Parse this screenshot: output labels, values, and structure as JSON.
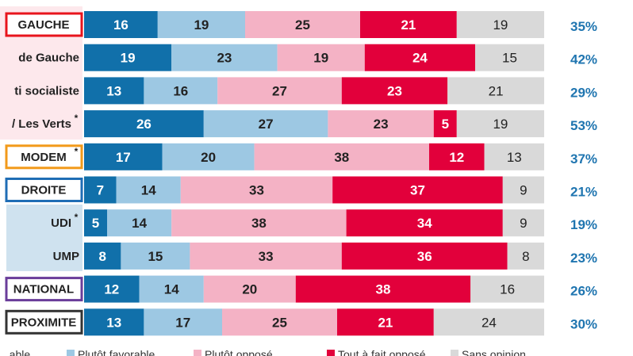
{
  "chart_data": {
    "type": "bar",
    "orientation": "horizontal",
    "stacked": true,
    "categories": [
      "GAUCHE",
      "de Gauche",
      "ti socialiste",
      "/ Les Verts",
      "MODEM",
      "DROITE",
      "UDI",
      "UMP",
      "NATIONAL",
      "PROXIMITE"
    ],
    "category_asterisk": [
      false,
      false,
      false,
      true,
      true,
      false,
      true,
      false,
      false,
      false
    ],
    "category_box": [
      {
        "style": "outlined",
        "color": "#e8141c"
      },
      {
        "style": "plain"
      },
      {
        "style": "plain"
      },
      {
        "style": "plain"
      },
      {
        "style": "outlined",
        "color": "#f29a1a"
      },
      {
        "style": "outlined",
        "color": "#1f6db5"
      },
      {
        "style": "shaded"
      },
      {
        "style": "shaded"
      },
      {
        "style": "outlined",
        "color": "#6a3d9a"
      },
      {
        "style": "outlined",
        "color": "#333333"
      }
    ],
    "series": [
      {
        "color": "#1170aa",
        "label_color": "#ffffff",
        "values": [
          16,
          19,
          13,
          26,
          17,
          7,
          5,
          8,
          12,
          13
        ]
      },
      {
        "color": "#9dc8e3",
        "label_color": "#222222",
        "values": [
          19,
          23,
          16,
          27,
          20,
          14,
          14,
          15,
          14,
          17
        ]
      },
      {
        "color": "#f4b2c5",
        "label_color": "#222222",
        "values": [
          25,
          19,
          27,
          23,
          38,
          33,
          38,
          33,
          20,
          25
        ]
      },
      {
        "color": "#e2003b",
        "label_color": "#ffffff",
        "values": [
          21,
          24,
          23,
          5,
          12,
          37,
          34,
          36,
          38,
          21
        ]
      },
      {
        "color": "#d9d9d9",
        "label_color": "#222222",
        "values": [
          19,
          15,
          21,
          19,
          13,
          9,
          9,
          8,
          16,
          24
        ]
      }
    ],
    "right_values": [
      "35%",
      "42%",
      "29%",
      "53%",
      "37%",
      "21%",
      "19%",
      "23%",
      "26%",
      "30%"
    ],
    "right_value_color": "#1f75b0",
    "legend": {
      "placement": "bottom",
      "entries": [
        {
          "label": "...able",
          "color": "#1170aa"
        },
        {
          "label": "Plutôt favorable",
          "color": "#9dc8e3"
        },
        {
          "label": "Plutôt opposé",
          "color": "#f4b2c5"
        },
        {
          "label": "Tout à fait opposé",
          "color": "#e2003b"
        },
        {
          "label": "Sans opinion",
          "color": "#d9d9d9"
        }
      ]
    },
    "xlim": [
      0,
      100
    ]
  }
}
